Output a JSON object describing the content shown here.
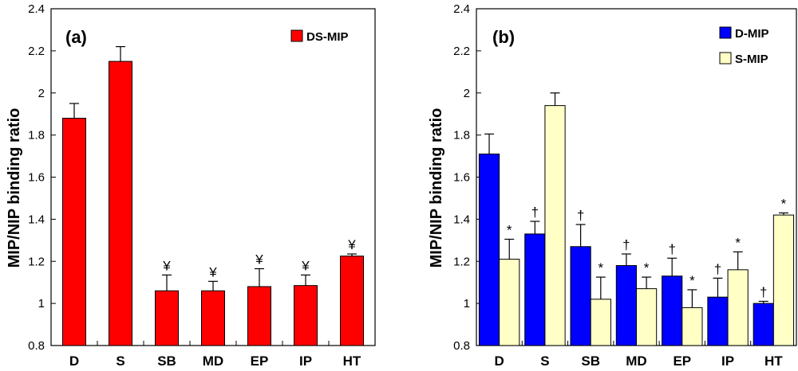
{
  "chart_data": [
    {
      "type": "bar",
      "panel_label": "(a)",
      "ylabel": "MIP/NIP binding ratio",
      "ylim": [
        0.8,
        2.4
      ],
      "yticks": [
        "0.8",
        "1",
        "1.2",
        "1.4",
        "1.6",
        "1.8",
        "2",
        "2.2",
        "2.4"
      ],
      "categories": [
        "D",
        "S",
        "SB",
        "MD",
        "EP",
        "IP",
        "HT"
      ],
      "legend_position": "top-right",
      "series": [
        {
          "name": "DS-MIP",
          "color": "#ff0000",
          "values": [
            1.88,
            2.15,
            1.06,
            1.06,
            1.08,
            1.085,
            1.225
          ],
          "errors": [
            0.07,
            0.07,
            0.075,
            0.045,
            0.085,
            0.05,
            0.01
          ],
          "annotations": [
            "",
            "",
            "¥",
            "¥",
            "¥",
            "¥",
            "¥"
          ]
        }
      ]
    },
    {
      "type": "bar",
      "panel_label": "(b)",
      "ylabel": "MIP/NIP binding ratio",
      "ylim": [
        0.8,
        2.4
      ],
      "yticks": [
        "0.8",
        "1",
        "1.2",
        "1.4",
        "1.6",
        "1.8",
        "2",
        "2.2",
        "2.4"
      ],
      "categories": [
        "D",
        "S",
        "SB",
        "MD",
        "EP",
        "IP",
        "HT"
      ],
      "legend_position": "top-right",
      "series": [
        {
          "name": "D-MIP",
          "color": "#0000ff",
          "values": [
            1.71,
            1.33,
            1.27,
            1.18,
            1.13,
            1.03,
            1.0
          ],
          "errors": [
            0.095,
            0.06,
            0.105,
            0.055,
            0.085,
            0.09,
            0.01
          ],
          "annotations": [
            "",
            "†",
            "†",
            "†",
            "†",
            "†",
            "†"
          ]
        },
        {
          "name": "S-MIP",
          "color": "#ffffc6",
          "values": [
            1.21,
            1.94,
            1.02,
            1.07,
            0.98,
            1.16,
            1.42
          ],
          "errors": [
            0.095,
            0.06,
            0.105,
            0.055,
            0.085,
            0.085,
            0.01
          ],
          "annotations": [
            "*",
            "",
            "*",
            "*",
            "*",
            "*",
            "*"
          ]
        }
      ]
    }
  ]
}
